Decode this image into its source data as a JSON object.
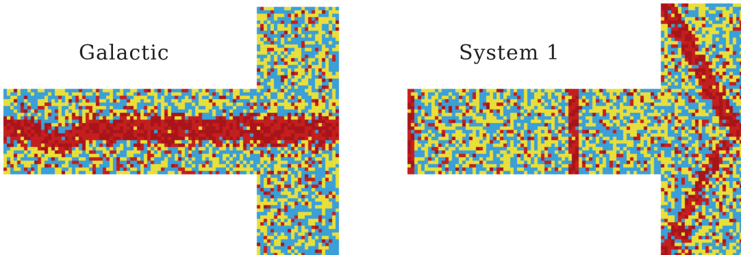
{
  "panels": [
    {
      "title": "Galactic",
      "feature": "horizontal-band"
    },
    {
      "title": "System 1",
      "feature": "vertical-and-diagonal-bands"
    }
  ],
  "colors": {
    "blue": "#3b9fd8",
    "yellow": "#e8df3a",
    "red": "#c41f1f",
    "dark_red": "#a8141a",
    "background": "#ffffff"
  }
}
